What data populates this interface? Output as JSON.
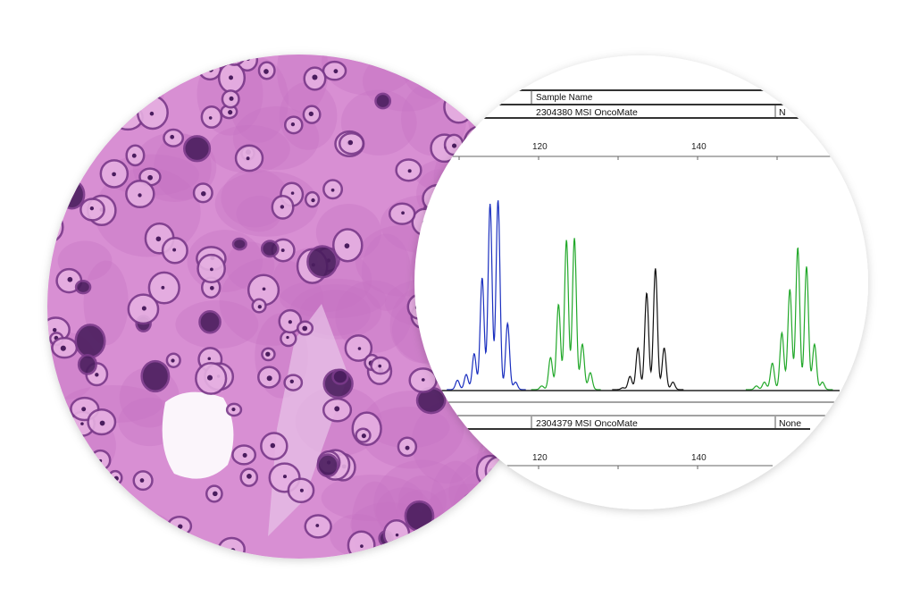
{
  "histology": {
    "stain_colors": {
      "background": "#d88fd3",
      "cytoplasm": "#c774c4",
      "nucleus": "#7a3a8a",
      "nucleus_dark": "#4a1d5e",
      "lumen": "#fbf5fb"
    }
  },
  "electropherogram": {
    "header_label": "Sample Name",
    "panels": [
      {
        "sample_name": "2304380 MSI OncoMate",
        "status": "None",
        "status_visible": "N"
      },
      {
        "sample_name": "2304379 MSI OncoMate",
        "status": "None"
      }
    ],
    "axis_ticks": [
      "120",
      "140"
    ],
    "chart_data": {
      "type": "line",
      "xlabel": "",
      "ylabel": "",
      "x_unit": "bp",
      "xlim": [
        105,
        158
      ],
      "series": [
        {
          "color": "#1a2fbf",
          "peaks": [
            [
              109.8,
              0.05
            ],
            [
              110.9,
              0.08
            ],
            [
              111.9,
              0.19
            ],
            [
              112.9,
              0.59
            ],
            [
              113.9,
              0.98
            ],
            [
              114.9,
              1.0
            ],
            [
              116.1,
              0.35
            ],
            [
              117.1,
              0.04
            ]
          ]
        },
        {
          "color": "#22a82a",
          "peaks": [
            [
              120.4,
              0.02
            ],
            [
              121.5,
              0.17
            ],
            [
              122.5,
              0.45
            ],
            [
              123.5,
              0.79
            ],
            [
              124.5,
              0.8
            ],
            [
              125.5,
              0.24
            ],
            [
              126.5,
              0.09
            ]
          ]
        },
        {
          "color": "#111111",
          "peaks": [
            [
              130.6,
              0.01
            ],
            [
              131.5,
              0.07
            ],
            [
              132.5,
              0.22
            ],
            [
              133.6,
              0.51
            ],
            [
              134.7,
              0.64
            ],
            [
              135.8,
              0.22
            ],
            [
              136.9,
              0.04
            ]
          ]
        },
        {
          "color": "#22a82a",
          "peaks": [
            [
              147.4,
              0.02
            ],
            [
              148.4,
              0.04
            ],
            [
              149.4,
              0.14
            ],
            [
              150.6,
              0.3
            ],
            [
              151.6,
              0.53
            ],
            [
              152.6,
              0.75
            ],
            [
              153.7,
              0.65
            ],
            [
              154.7,
              0.24
            ],
            [
              155.7,
              0.04
            ]
          ]
        }
      ]
    }
  }
}
